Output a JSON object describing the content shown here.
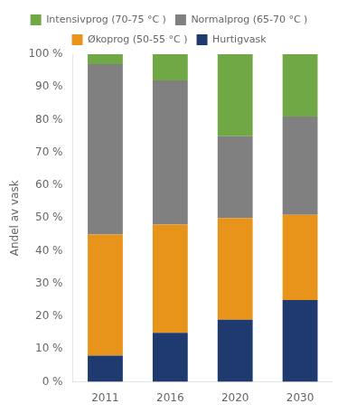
{
  "chart_data": {
    "type": "bar",
    "stacked": true,
    "categories": [
      "2011",
      "2016",
      "2020",
      "2030"
    ],
    "series": [
      {
        "name": "Hurtigvask",
        "color": "#1f3a6e",
        "values": [
          8,
          15,
          19,
          25
        ]
      },
      {
        "name": "Økoprog (50-55 °C )",
        "color": "#e8931a",
        "values": [
          37,
          33,
          31,
          26
        ]
      },
      {
        "name": "Normalprog (65-70 °C )",
        "color": "#808080",
        "values": [
          52,
          44,
          25,
          30
        ]
      },
      {
        "name": "Intensivprog (70-75 °C )",
        "color": "#70a846",
        "values": [
          3,
          8,
          25,
          19
        ]
      }
    ],
    "ylabel": "Andel av vask",
    "ylim": [
      0,
      100
    ],
    "yticks": [
      {
        "value": 0,
        "label": "0 %"
      },
      {
        "value": 10,
        "label": "10 %"
      },
      {
        "value": 20,
        "label": "20 %"
      },
      {
        "value": 30,
        "label": "30 %"
      },
      {
        "value": 40,
        "label": "40 %"
      },
      {
        "value": 50,
        "label": "50 %"
      },
      {
        "value": 60,
        "label": "60 %"
      },
      {
        "value": 70,
        "label": "70 %"
      },
      {
        "value": 80,
        "label": "80 %"
      },
      {
        "value": 90,
        "label": "90 %"
      },
      {
        "value": 100,
        "label": "100 %"
      }
    ],
    "grid": false,
    "legend": "top"
  }
}
